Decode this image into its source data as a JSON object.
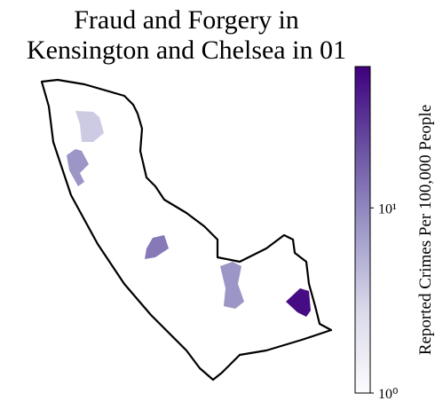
{
  "chart_data": {
    "type": "choropleth",
    "title": "Fraud and Forgery in\nKensington and Chelsea in 01",
    "colorbar_label": "Reported Crimes Per 100,000 People",
    "log_scale": true,
    "colormap_colors": [
      "#fcfbfd",
      "#dadaeb",
      "#9e9ac8",
      "#6a51a3",
      "#3f007d"
    ],
    "clim": [
      1,
      58
    ],
    "cticks": [
      {
        "value": 1,
        "label": "10⁰"
      },
      {
        "value": 10,
        "label": "10¹"
      }
    ],
    "values": [
      3.5,
      8,
      12,
      8,
      50
    ]
  }
}
